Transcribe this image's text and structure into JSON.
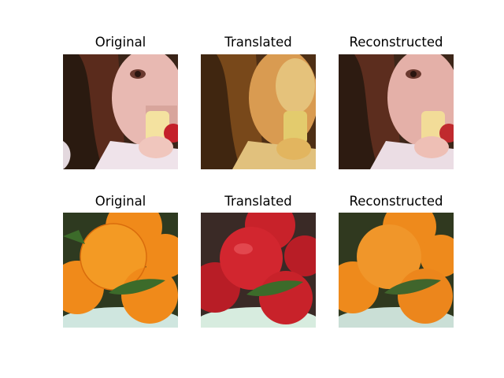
{
  "figure": {
    "rows": [
      {
        "panels": [
          {
            "title": "Original",
            "scene": "face"
          },
          {
            "title": "Translated",
            "scene": "face"
          },
          {
            "title": "Reconstructed",
            "scene": "face"
          }
        ]
      },
      {
        "panels": [
          {
            "title": "Original",
            "scene": "oranges"
          },
          {
            "title": "Translated",
            "scene": "apples"
          },
          {
            "title": "Reconstructed",
            "scene": "oranges"
          }
        ]
      }
    ]
  },
  "colors": {
    "face_bg_dark": "#3a2418",
    "face_skin": "#e8b9b2",
    "face_skin_warm": "#e9a95a",
    "hair": "#5a2b1c",
    "shirt": "#efe3ea",
    "apple_skin": "#f4e2a0",
    "apple_red": "#c4202a",
    "orange": "#f08a1a",
    "orange_dark": "#d96c0c",
    "red_apple": "#c8222a",
    "leaf": "#3c6b2a",
    "bowl": "#cfe6df"
  }
}
